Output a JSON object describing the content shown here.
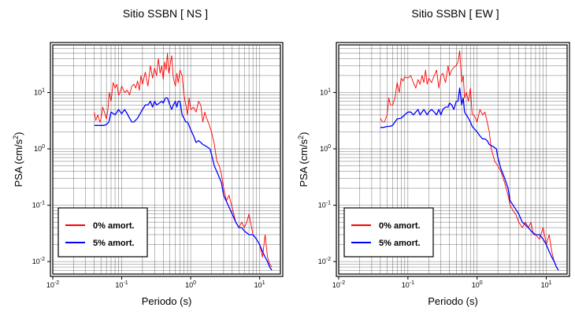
{
  "chart_data": [
    {
      "type": "line",
      "title": "Sitio SSBN [ NS ]",
      "xlabel": "Periodo (s)",
      "ylabel_base": "PSA (cm/s",
      "ylabel_sup": "2",
      "ylabel_end": ")",
      "xscale": "log",
      "yscale": "log",
      "xlim": [
        0.01,
        20
      ],
      "ylim": [
        0.006,
        70
      ],
      "grid": true,
      "legend_position": "bottom-left",
      "xticks": [
        {
          "base": "10",
          "exp": "-2"
        },
        {
          "base": "10",
          "exp": "-1"
        },
        {
          "base": "10",
          "exp": "0"
        },
        {
          "base": "10",
          "exp": "1"
        }
      ],
      "yticks": [
        {
          "base": "10",
          "exp": "-2"
        },
        {
          "base": "10",
          "exp": "-1"
        },
        {
          "base": "10",
          "exp": "0"
        },
        {
          "base": "10",
          "exp": "1"
        }
      ],
      "series": [
        {
          "name": "0% amort.",
          "color": "#ff0000",
          "x": [
            0.04,
            0.042,
            0.045,
            0.048,
            0.05,
            0.053,
            0.056,
            0.06,
            0.063,
            0.066,
            0.07,
            0.075,
            0.08,
            0.085,
            0.09,
            0.095,
            0.1,
            0.11,
            0.12,
            0.13,
            0.14,
            0.15,
            0.16,
            0.17,
            0.18,
            0.19,
            0.2,
            0.22,
            0.24,
            0.26,
            0.28,
            0.3,
            0.32,
            0.34,
            0.36,
            0.38,
            0.4,
            0.42,
            0.44,
            0.46,
            0.48,
            0.5,
            0.53,
            0.56,
            0.6,
            0.63,
            0.66,
            0.7,
            0.75,
            0.8,
            0.85,
            0.9,
            0.95,
            1.0,
            1.1,
            1.2,
            1.3,
            1.4,
            1.5,
            1.6,
            1.7,
            1.8,
            2.0,
            2.2,
            2.4,
            2.6,
            2.8,
            3.0,
            3.3,
            3.6,
            4.0,
            4.5,
            5.0,
            5.5,
            6.0,
            6.5,
            7.0,
            8.0,
            9.0,
            10.0,
            11.0,
            12.0,
            13.0,
            14.0,
            15.0
          ],
          "y": [
            4.5,
            3.2,
            4.0,
            3.0,
            3.4,
            5.5,
            4.5,
            3.4,
            5.0,
            10.0,
            7.0,
            15.0,
            12.0,
            14.0,
            9.0,
            10.0,
            13.0,
            10.0,
            11.0,
            9.0,
            13.0,
            14.0,
            12.0,
            16.0,
            11.0,
            20.0,
            14.0,
            23.0,
            13.0,
            30.0,
            18.0,
            27.0,
            20.0,
            40.0,
            22.0,
            30.0,
            17.0,
            35.0,
            25.0,
            50.0,
            22.0,
            30.0,
            45.0,
            18.0,
            13.0,
            22.0,
            15.0,
            25.0,
            20.0,
            9.0,
            6.0,
            4.0,
            8.0,
            5.0,
            5.5,
            4.5,
            7.0,
            6.0,
            3.0,
            4.5,
            3.5,
            3.0,
            2.0,
            1.2,
            0.6,
            0.5,
            0.35,
            0.2,
            0.12,
            0.15,
            0.09,
            0.05,
            0.04,
            0.05,
            0.04,
            0.05,
            0.07,
            0.03,
            0.025,
            0.02,
            0.012,
            0.03,
            0.012,
            0.009,
            0.008
          ]
        },
        {
          "name": "5% amort.",
          "color": "#0000ff",
          "x": [
            0.04,
            0.045,
            0.05,
            0.055,
            0.06,
            0.065,
            0.07,
            0.08,
            0.09,
            0.1,
            0.11,
            0.12,
            0.13,
            0.14,
            0.15,
            0.17,
            0.19,
            0.2,
            0.22,
            0.24,
            0.26,
            0.28,
            0.3,
            0.32,
            0.35,
            0.38,
            0.4,
            0.43,
            0.46,
            0.5,
            0.53,
            0.56,
            0.6,
            0.63,
            0.66,
            0.7,
            0.75,
            0.8,
            0.85,
            0.9,
            1.0,
            1.1,
            1.2,
            1.3,
            1.4,
            1.5,
            1.7,
            1.9,
            2.0,
            2.2,
            2.5,
            2.8,
            3.0,
            3.5,
            4.0,
            4.5,
            5.0,
            5.5,
            6.0,
            7.0,
            8.0,
            9.0,
            10.0,
            11.0,
            12.0,
            13.0,
            14.0,
            15.0
          ],
          "y": [
            2.6,
            2.6,
            2.6,
            2.6,
            2.7,
            3.0,
            4.5,
            4.0,
            5.0,
            4.2,
            5.0,
            4.2,
            3.5,
            3.0,
            3.0,
            3.5,
            4.5,
            5.0,
            6.0,
            6.0,
            7.0,
            5.5,
            7.0,
            6.0,
            6.5,
            7.0,
            6.5,
            8.0,
            8.0,
            6.0,
            5.0,
            6.0,
            7.0,
            5.5,
            7.0,
            7.0,
            4.0,
            3.5,
            3.0,
            3.0,
            2.2,
            1.7,
            1.3,
            1.4,
            1.3,
            1.2,
            1.1,
            1.0,
            0.8,
            0.5,
            0.35,
            0.25,
            0.15,
            0.1,
            0.07,
            0.05,
            0.04,
            0.04,
            0.035,
            0.03,
            0.03,
            0.025,
            0.02,
            0.015,
            0.012,
            0.01,
            0.008,
            0.007
          ]
        }
      ]
    },
    {
      "type": "line",
      "title": "Sitio SSBN [ EW ]",
      "xlabel": "Periodo (s)",
      "ylabel_base": "PSA (cm/s",
      "ylabel_sup": "2",
      "ylabel_end": ")",
      "xscale": "log",
      "yscale": "log",
      "xlim": [
        0.01,
        20
      ],
      "ylim": [
        0.006,
        70
      ],
      "grid": true,
      "legend_position": "bottom-left",
      "xticks": [
        {
          "base": "10",
          "exp": "-2"
        },
        {
          "base": "10",
          "exp": "-1"
        },
        {
          "base": "10",
          "exp": "0"
        },
        {
          "base": "10",
          "exp": "1"
        }
      ],
      "yticks": [
        {
          "base": "10",
          "exp": "-2"
        },
        {
          "base": "10",
          "exp": "-1"
        },
        {
          "base": "10",
          "exp": "0"
        },
        {
          "base": "10",
          "exp": "1"
        }
      ],
      "series": [
        {
          "name": "0% amort.",
          "color": "#ff0000",
          "x": [
            0.04,
            0.043,
            0.046,
            0.05,
            0.053,
            0.056,
            0.06,
            0.065,
            0.07,
            0.075,
            0.08,
            0.085,
            0.09,
            0.1,
            0.11,
            0.12,
            0.13,
            0.14,
            0.15,
            0.16,
            0.17,
            0.18,
            0.19,
            0.2,
            0.22,
            0.24,
            0.26,
            0.28,
            0.3,
            0.32,
            0.35,
            0.38,
            0.4,
            0.43,
            0.46,
            0.5,
            0.53,
            0.56,
            0.6,
            0.63,
            0.66,
            0.7,
            0.75,
            0.8,
            0.85,
            0.9,
            1.0,
            1.1,
            1.2,
            1.3,
            1.4,
            1.5,
            1.6,
            1.8,
            2.0,
            2.2,
            2.5,
            2.8,
            3.0,
            3.3,
            3.6,
            4.0,
            4.5,
            5.0,
            5.5,
            6.0,
            6.5,
            7.0,
            8.0,
            9.0,
            10.0,
            11.0,
            12.0,
            13.0,
            14.0,
            15.0
          ],
          "y": [
            3.5,
            3.0,
            3.0,
            4.0,
            8.0,
            6.0,
            6.0,
            8.0,
            15.0,
            10.0,
            18.0,
            16.0,
            19.0,
            18.0,
            20.0,
            15.0,
            12.0,
            17.0,
            14.0,
            20.0,
            15.0,
            25.0,
            14.0,
            18.0,
            15.0,
            20.0,
            25.0,
            12.0,
            20.0,
            22.0,
            15.0,
            30.0,
            20.0,
            25.0,
            28.0,
            30.0,
            35.0,
            55.0,
            15.0,
            20.0,
            8.0,
            10.0,
            7.0,
            12.0,
            4.0,
            4.0,
            3.0,
            5.0,
            4.0,
            4.5,
            3.0,
            2.0,
            1.0,
            0.6,
            0.5,
            0.4,
            0.25,
            0.15,
            0.1,
            0.08,
            0.07,
            0.05,
            0.04,
            0.05,
            0.04,
            0.05,
            0.03,
            0.03,
            0.025,
            0.04,
            0.02,
            0.03,
            0.015,
            0.01,
            0.008,
            0.007
          ]
        },
        {
          "name": "5% amort.",
          "color": "#0000ff",
          "x": [
            0.04,
            0.045,
            0.05,
            0.055,
            0.06,
            0.065,
            0.07,
            0.08,
            0.09,
            0.1,
            0.11,
            0.12,
            0.13,
            0.14,
            0.15,
            0.17,
            0.19,
            0.2,
            0.22,
            0.24,
            0.26,
            0.28,
            0.3,
            0.32,
            0.35,
            0.38,
            0.4,
            0.43,
            0.46,
            0.5,
            0.53,
            0.56,
            0.6,
            0.63,
            0.66,
            0.7,
            0.75,
            0.8,
            0.85,
            0.9,
            1.0,
            1.1,
            1.2,
            1.3,
            1.4,
            1.5,
            1.7,
            1.9,
            2.0,
            2.2,
            2.5,
            2.8,
            3.0,
            3.5,
            4.0,
            4.5,
            5.0,
            5.5,
            6.0,
            7.0,
            8.0,
            9.0,
            10.0,
            11.0,
            12.0,
            13.0,
            14.0,
            15.0
          ],
          "y": [
            2.4,
            2.4,
            2.5,
            2.5,
            2.6,
            3.0,
            3.4,
            3.5,
            4.0,
            4.5,
            4.5,
            4.0,
            4.5,
            5.0,
            4.0,
            5.0,
            4.0,
            4.5,
            5.0,
            4.5,
            4.0,
            5.0,
            4.0,
            5.0,
            5.5,
            5.5,
            6.5,
            6.0,
            5.0,
            7.0,
            7.0,
            12.0,
            6.0,
            8.0,
            4.5,
            4.0,
            3.5,
            3.0,
            2.5,
            2.3,
            2.0,
            1.7,
            1.5,
            1.5,
            1.4,
            1.2,
            1.1,
            1.0,
            0.7,
            0.45,
            0.3,
            0.2,
            0.12,
            0.09,
            0.07,
            0.05,
            0.045,
            0.04,
            0.035,
            0.03,
            0.03,
            0.025,
            0.02,
            0.015,
            0.012,
            0.01,
            0.008,
            0.007
          ]
        }
      ]
    }
  ]
}
